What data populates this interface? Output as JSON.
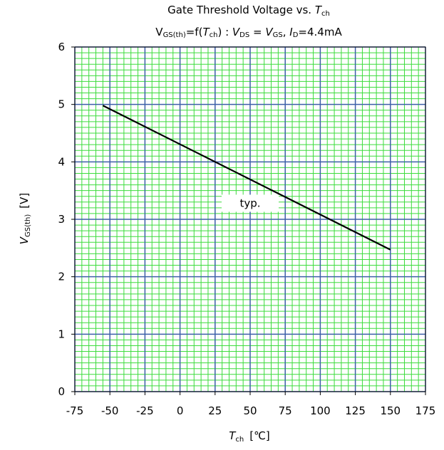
{
  "chart_data": {
    "type": "line",
    "title": {
      "line1_main": "Gate Threshold Voltage vs. ",
      "line1_var": "T",
      "line1_sub": "ch",
      "line2": {
        "v1": "V",
        "s1": "GS(th)",
        "t1": "=f(",
        "v2": "T",
        "s2": "ch",
        "t2": ") : ",
        "v3": "V",
        "s3": "DS",
        "t3": " = ",
        "v4": "V",
        "s4": "GS",
        "t4": ", ",
        "v5": "I",
        "s5": "D",
        "t5": "=4.4mA"
      }
    },
    "xlabel": {
      "var": "T",
      "sub": "ch",
      "unit": "[℃]"
    },
    "ylabel": {
      "var": "V",
      "sub": "GS(th)",
      "unit": "[V]"
    },
    "xlim": [
      -75,
      175
    ],
    "ylim": [
      0,
      6
    ],
    "x_ticks": [
      -75,
      -50,
      -25,
      0,
      25,
      50,
      75,
      100,
      125,
      150,
      175
    ],
    "y_ticks": [
      0,
      1,
      2,
      3,
      4,
      5,
      6
    ],
    "x_minor_step": 5,
    "y_minor_step": 0.1,
    "grid": true,
    "annotation": {
      "text": "typ.",
      "x": 50,
      "y": 3.28
    },
    "series": [
      {
        "name": "",
        "x": [
          -55,
          150
        ],
        "y": [
          4.98,
          2.47
        ]
      }
    ],
    "colors": {
      "major_grid": "#3d5fa8",
      "minor_grid": "#3cdc3c",
      "line": "#000000"
    }
  }
}
